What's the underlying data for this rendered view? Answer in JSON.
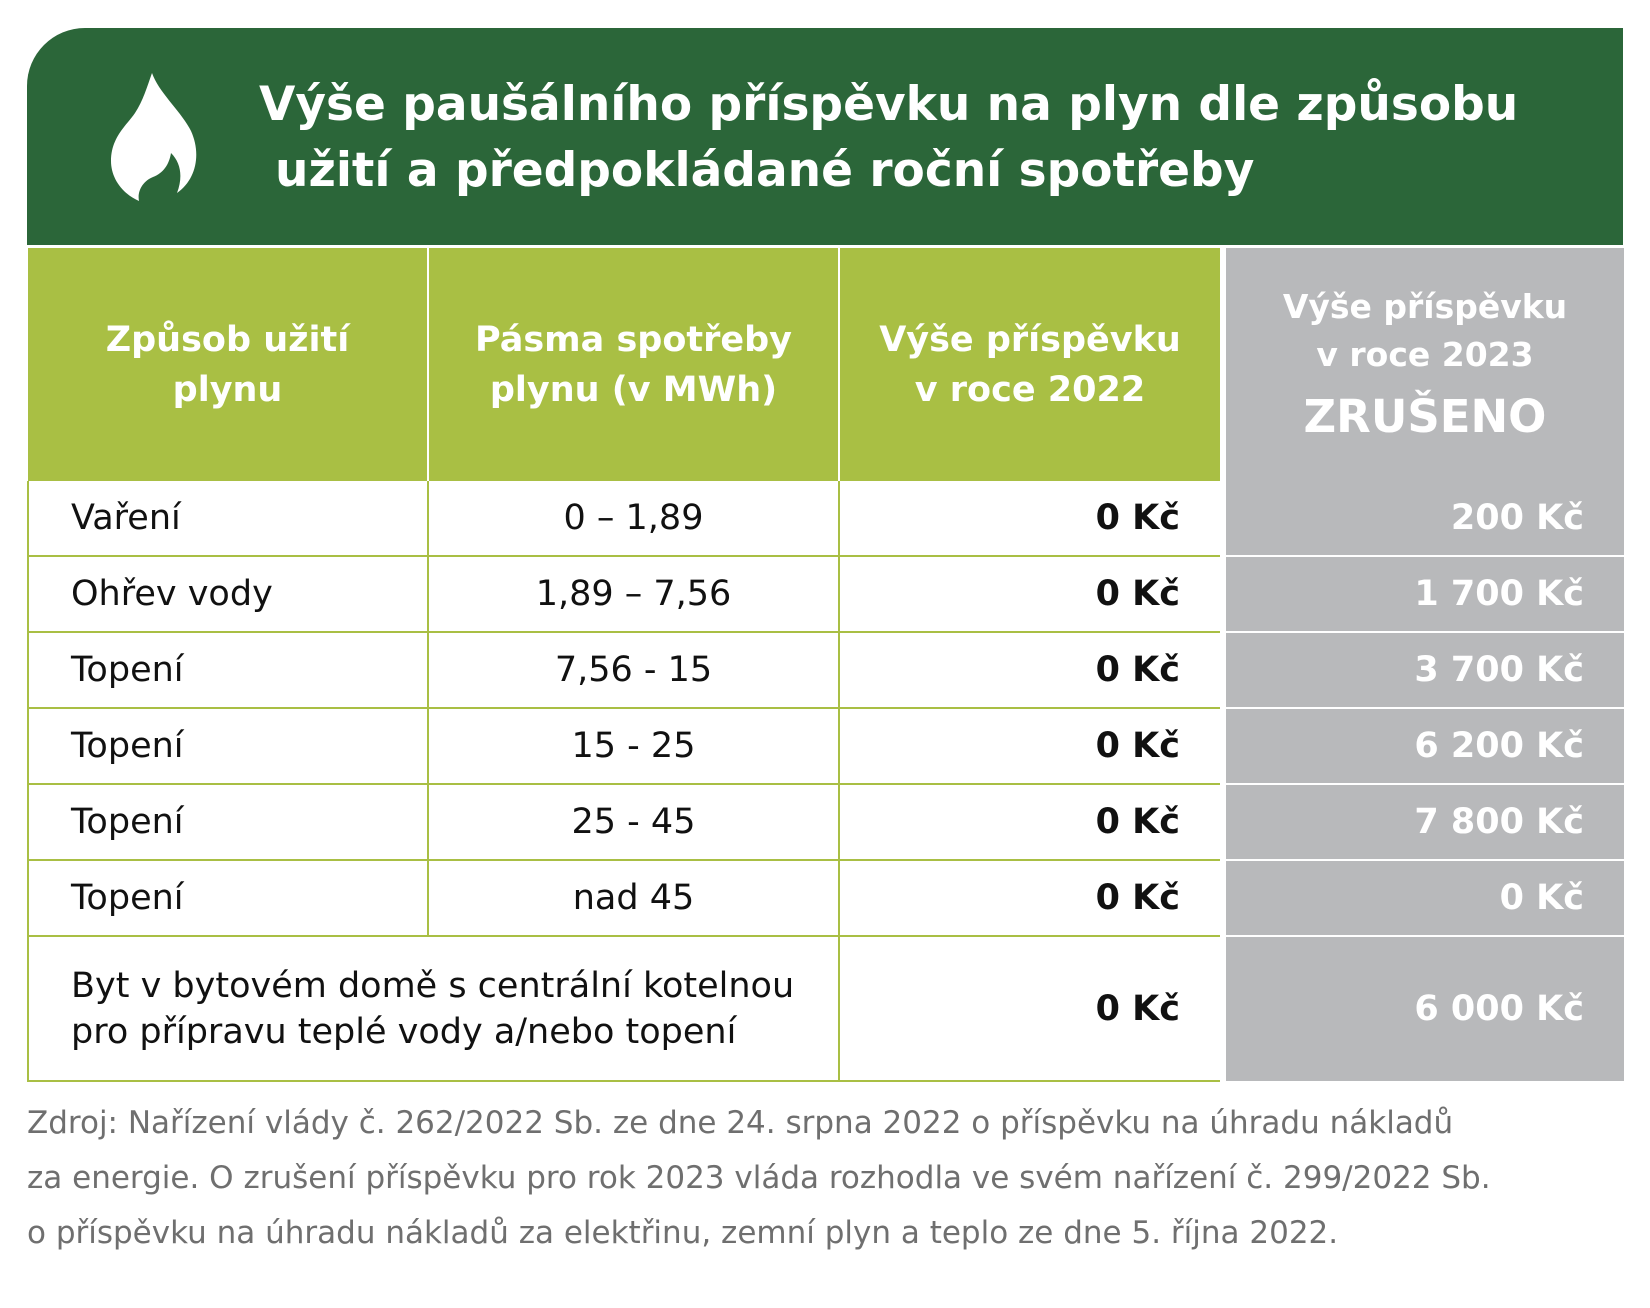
{
  "header": {
    "title_line1": "Výše paušálního příspěvku na plyn dle způsobu",
    "title_line2": "užití a předpokládané roční spotřeby",
    "icon": "flame-icon",
    "color": "#2b6639"
  },
  "table": {
    "headers": {
      "usage": [
        "Způsob užití",
        "plynu"
      ],
      "bands": [
        "Pásma spotřeby",
        "plynu (v MWh)"
      ],
      "y2022": [
        "Výše příspěvku",
        "v roce 2022"
      ],
      "y2023": [
        "Výše příspěvku",
        "v roce 2023"
      ],
      "y2023_status": "ZRUŠENO"
    },
    "rows": [
      {
        "usage": "Vaření",
        "band": "0 – 1,89",
        "y2022": "0 Kč",
        "y2023": "200 Kč"
      },
      {
        "usage": "Ohřev vody",
        "band": "1,89 – 7,56",
        "y2022": "0 Kč",
        "y2023": "1 700 Kč"
      },
      {
        "usage": "Topení",
        "band": "7,56 - 15",
        "y2022": "0 Kč",
        "y2023": "3 700 Kč"
      },
      {
        "usage": "Topení",
        "band": "15 - 25",
        "y2022": "0 Kč",
        "y2023": "6 200 Kč"
      },
      {
        "usage": "Topení",
        "band": "25 - 45",
        "y2022": "0 Kč",
        "y2023": "7 800 Kč"
      },
      {
        "usage": "Topení",
        "band": "nad 45",
        "y2022": "0 Kč",
        "y2023": "0 Kč"
      }
    ],
    "last_row": {
      "usage": [
        "Byt v bytovém domě s centrální kotelnou",
        "pro přípravu teplé vody a/nebo topení"
      ],
      "y2022": "0 Kč",
      "y2023": "6 000 Kč"
    },
    "colors": {
      "green": "#a9bf44",
      "grey": "#b8b9bb"
    }
  },
  "source": [
    "Zdroj: Nařízení vlády č. 262/2022 Sb. ze dne 24. srpna 2022 o příspěvku na úhradu nákladů",
    "za energie. O zrušení příspěvku pro rok 2023 vláda rozhodla ve svém nařízení č. 299/2022 Sb.",
    "o příspěvku na úhradu nákladů za elektřinu, zemní plyn a teplo ze dne 5. října 2022."
  ]
}
